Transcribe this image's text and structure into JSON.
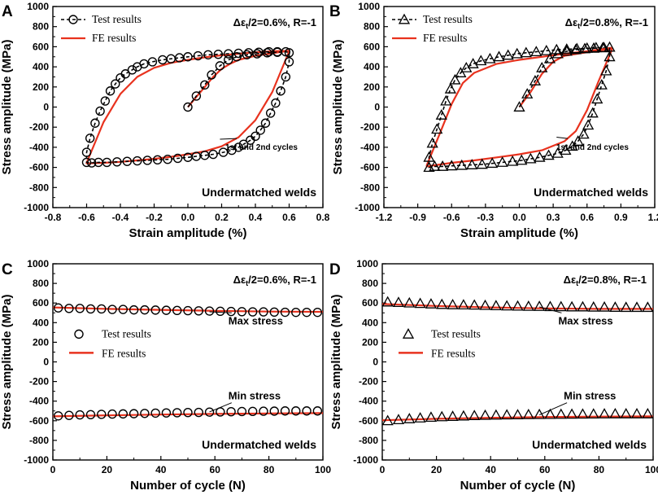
{
  "colors": {
    "fe_line": "#e8321e",
    "marker": "#000000",
    "frame": "#000000"
  },
  "chart_data": [
    {
      "panel": "A",
      "type": "scatter",
      "condition": {
        "prefix": "Δε",
        "sub": "t",
        "suffix": "/2=0.6%, R=-1"
      },
      "material": "Undermatched welds",
      "xlabel": "Strain amplitude (%)",
      "ylabel": "Stress amplitude (MPa)",
      "xlim": [
        -0.8,
        0.8
      ],
      "ylim": [
        -1000,
        1000
      ],
      "xticks": [
        -0.8,
        -0.6,
        -0.4,
        -0.2,
        0.0,
        0.2,
        0.4,
        0.6,
        0.8
      ],
      "xtick_labels": [
        "-0.8",
        "-0.6",
        "-0.4",
        "-0.2",
        "0.0",
        "0.2",
        "0.4",
        "0.6",
        "0.8"
      ],
      "yticks": [
        -1000,
        -800,
        -600,
        -400,
        -200,
        0,
        200,
        400,
        600,
        800,
        1000
      ],
      "ytick_labels": [
        "-1000",
        "-800",
        "-600",
        "-400",
        "-200",
        "0",
        "200",
        "400",
        "600",
        "800",
        "1000"
      ],
      "marker": "circle",
      "legend": {
        "test": "Test results",
        "fe": "FE results",
        "style": "inline-dash"
      },
      "annotation": {
        "text": "1st and 2nd cycles",
        "x": 0.27,
        "y": -410,
        "arrow_to": [
          0.19,
          -320
        ]
      },
      "series": [
        {
          "name": "Test results",
          "style": "markers",
          "x": [
            0.0,
            0.05,
            0.1,
            0.14,
            0.19,
            0.24,
            0.29,
            0.35,
            0.41,
            0.47,
            0.53,
            0.58,
            0.6,
            0.6,
            0.58,
            0.55,
            0.52,
            0.49,
            0.46,
            0.43,
            0.4,
            0.37,
            0.33,
            0.3,
            0.26,
            0.21,
            0.15,
            0.1,
            0.05,
            0.0,
            -0.06,
            -0.12,
            -0.18,
            -0.24,
            -0.3,
            -0.36,
            -0.42,
            -0.48,
            -0.53,
            -0.57,
            -0.6,
            -0.6,
            -0.58,
            -0.55,
            -0.52,
            -0.49,
            -0.46,
            -0.43,
            -0.4,
            -0.37,
            -0.33,
            -0.3,
            -0.26,
            -0.21,
            -0.15,
            -0.1,
            -0.05,
            0.0,
            0.06,
            0.12,
            0.18,
            0.24,
            0.3,
            0.36,
            0.42,
            0.48,
            0.53
          ],
          "y": [
            0,
            110,
            220,
            320,
            410,
            470,
            500,
            520,
            530,
            540,
            545,
            550,
            540,
            450,
            300,
            160,
            40,
            -60,
            -160,
            -230,
            -290,
            -330,
            -370,
            -400,
            -430,
            -450,
            -470,
            -480,
            -490,
            -500,
            -510,
            -520,
            -525,
            -530,
            -535,
            -540,
            -545,
            -550,
            -550,
            -555,
            -550,
            -450,
            -310,
            -160,
            -40,
            60,
            160,
            230,
            290,
            330,
            370,
            400,
            430,
            450,
            470,
            480,
            490,
            500,
            510,
            520,
            525,
            530,
            535,
            540,
            545,
            550,
            550
          ]
        },
        {
          "name": "FE results",
          "style": "line",
          "x": [
            0.0,
            0.05,
            0.1,
            0.15,
            0.2,
            0.25,
            0.3,
            0.4,
            0.5,
            0.6,
            0.6,
            0.5,
            0.4,
            0.3,
            0.2,
            0.1,
            0.0,
            -0.1,
            -0.2,
            -0.3,
            -0.4,
            -0.5,
            -0.6,
            -0.6,
            -0.5,
            -0.4,
            -0.3,
            -0.2,
            -0.1,
            0.0,
            0.1,
            0.2,
            0.3,
            0.4,
            0.5,
            0.6
          ],
          "y": [
            0,
            100,
            200,
            300,
            380,
            430,
            470,
            510,
            535,
            560,
            555,
            150,
            -130,
            -300,
            -390,
            -440,
            -470,
            -495,
            -515,
            -530,
            -545,
            -555,
            -560,
            -555,
            -150,
            130,
            300,
            390,
            440,
            470,
            495,
            515,
            530,
            545,
            555,
            560
          ]
        }
      ]
    },
    {
      "panel": "B",
      "type": "scatter",
      "condition": {
        "prefix": "Δε",
        "sub": "t",
        "suffix": "/2=0.8%, R=-1"
      },
      "material": "Undermatched welds",
      "xlabel": "Strain amplitude (%)",
      "ylabel": "Stress amplitude (MPa)",
      "xlim": [
        -1.2,
        1.2
      ],
      "ylim": [
        -1000,
        1000
      ],
      "xticks": [
        -1.2,
        -0.9,
        -0.6,
        -0.3,
        0.0,
        0.3,
        0.6,
        0.9,
        1.2
      ],
      "xtick_labels": [
        "-1.2",
        "-0.9",
        "-0.6",
        "-0.3",
        "0.0",
        "0.3",
        "0.6",
        "0.9",
        "1.2"
      ],
      "yticks": [
        -1000,
        -800,
        -600,
        -400,
        -200,
        0,
        200,
        400,
        600,
        800,
        1000
      ],
      "ytick_labels": [
        "-1000",
        "-800",
        "-600",
        "-400",
        "-200",
        "0",
        "200",
        "400",
        "600",
        "800",
        "1000"
      ],
      "marker": "triangle",
      "legend": {
        "test": "Test results",
        "fe": "FE results",
        "style": "inline-dash"
      },
      "annotation": {
        "text": "1st and 2nd cycles",
        "x": 0.4,
        "y": -410,
        "arrow_to": [
          0.33,
          -300
        ]
      },
      "series": [
        {
          "name": "Test results",
          "style": "markers",
          "x": [
            0.0,
            0.07,
            0.14,
            0.2,
            0.27,
            0.34,
            0.42,
            0.5,
            0.58,
            0.66,
            0.74,
            0.8,
            0.8,
            0.77,
            0.73,
            0.69,
            0.65,
            0.61,
            0.57,
            0.52,
            0.47,
            0.41,
            0.34,
            0.26,
            0.18,
            0.1,
            0.02,
            -0.06,
            -0.15,
            -0.24,
            -0.33,
            -0.42,
            -0.51,
            -0.6,
            -0.68,
            -0.75,
            -0.8,
            -0.8,
            -0.77,
            -0.73,
            -0.69,
            -0.65,
            -0.61,
            -0.57,
            -0.52,
            -0.47,
            -0.41,
            -0.34,
            -0.26,
            -0.18,
            -0.1,
            -0.02,
            0.06,
            0.15,
            0.24,
            0.33,
            0.42,
            0.51,
            0.6,
            0.68,
            0.75
          ],
          "y": [
            0,
            130,
            260,
            390,
            480,
            530,
            555,
            570,
            580,
            585,
            590,
            595,
            500,
            360,
            220,
            80,
            -60,
            -180,
            -270,
            -340,
            -390,
            -430,
            -460,
            -480,
            -500,
            -515,
            -530,
            -540,
            -550,
            -560,
            -570,
            -575,
            -580,
            -585,
            -590,
            -590,
            -600,
            -500,
            -360,
            -220,
            -80,
            60,
            180,
            270,
            340,
            390,
            430,
            460,
            480,
            500,
            515,
            530,
            540,
            550,
            560,
            570,
            575,
            580,
            585,
            590,
            590
          ]
        },
        {
          "name": "FE results",
          "style": "line",
          "x": [
            0.0,
            0.1,
            0.2,
            0.3,
            0.4,
            0.6,
            0.82,
            0.82,
            0.7,
            0.6,
            0.5,
            0.4,
            0.2,
            0.0,
            -0.2,
            -0.4,
            -0.6,
            -0.82,
            -0.82,
            -0.7,
            -0.6,
            -0.5,
            -0.4,
            -0.2,
            0.0,
            0.2,
            0.4,
            0.6,
            0.82
          ],
          "y": [
            0,
            150,
            330,
            450,
            510,
            545,
            580,
            570,
            250,
            -30,
            -240,
            -340,
            -430,
            -470,
            -500,
            -530,
            -555,
            -590,
            -580,
            -250,
            30,
            240,
            340,
            430,
            470,
            500,
            530,
            555,
            590
          ]
        }
      ]
    },
    {
      "panel": "C",
      "type": "line",
      "condition": {
        "prefix": "Δε",
        "sub": "t",
        "suffix": "/2=0.6%, R=-1"
      },
      "material": "Undermatched welds",
      "xlabel": "Number of cycle (N)",
      "ylabel": "Stress amplitude (MPa)",
      "xlim": [
        0,
        100
      ],
      "ylim": [
        -1000,
        1000
      ],
      "xticks": [
        0,
        20,
        40,
        60,
        80,
        100
      ],
      "xtick_labels": [
        "0",
        "20",
        "40",
        "60",
        "80",
        "100"
      ],
      "yticks": [
        -1000,
        -800,
        -600,
        -400,
        -200,
        0,
        200,
        400,
        600,
        800,
        1000
      ],
      "ytick_labels": [
        "-1000",
        "-800",
        "-600",
        "-400",
        "-200",
        "0",
        "200",
        "400",
        "600",
        "800",
        "1000"
      ],
      "marker": "circle",
      "legend": {
        "test": "Test results",
        "fe": "FE results",
        "style": "block"
      },
      "annotations": [
        {
          "text": "Max stress",
          "x": 65,
          "y": 400,
          "arrow_to": [
            58,
            510
          ]
        },
        {
          "text": "Min stress",
          "x": 65,
          "y": -400,
          "arrow_to": [
            58,
            -510
          ]
        }
      ],
      "series": [
        {
          "name": "Test results (max)",
          "style": "markers",
          "x": [
            2,
            6,
            10,
            14,
            18,
            22,
            26,
            30,
            34,
            38,
            42,
            46,
            50,
            54,
            58,
            62,
            66,
            70,
            74,
            78,
            82,
            86,
            90,
            94,
            98
          ],
          "y": [
            550,
            545,
            545,
            540,
            540,
            535,
            535,
            530,
            530,
            528,
            526,
            524,
            522,
            520,
            518,
            516,
            514,
            512,
            510,
            510,
            508,
            506,
            505,
            505,
            505
          ]
        },
        {
          "name": "Test results (min)",
          "style": "markers",
          "x": [
            2,
            6,
            10,
            14,
            18,
            22,
            26,
            30,
            34,
            38,
            42,
            46,
            50,
            54,
            58,
            62,
            66,
            70,
            74,
            78,
            82,
            86,
            90,
            94,
            98
          ],
          "y": [
            -550,
            -545,
            -540,
            -538,
            -535,
            -532,
            -530,
            -528,
            -525,
            -522,
            -520,
            -518,
            -516,
            -515,
            -512,
            -510,
            -508,
            -506,
            -505,
            -503,
            -502,
            -500,
            -500,
            -500,
            -500
          ]
        },
        {
          "name": "FE results (max)",
          "style": "line",
          "x": [
            0,
            20,
            40,
            60,
            80,
            100
          ],
          "y": [
            555,
            540,
            530,
            520,
            513,
            510
          ]
        },
        {
          "name": "FE results (min)",
          "style": "line",
          "x": [
            0,
            20,
            40,
            60,
            80,
            100
          ],
          "y": [
            -555,
            -545,
            -537,
            -530,
            -525,
            -522
          ]
        }
      ]
    },
    {
      "panel": "D",
      "type": "line",
      "condition": {
        "prefix": "Δε",
        "sub": "t",
        "suffix": "/2=0.8%, R=-1"
      },
      "material": "Undermatched welds",
      "xlabel": "Number of cycle (N)",
      "ylabel": "Stress amplitude (MPa)",
      "xlim": [
        0,
        100
      ],
      "ylim": [
        -1000,
        1000
      ],
      "xticks": [
        0,
        20,
        40,
        60,
        80,
        100
      ],
      "xtick_labels": [
        "0",
        "20",
        "40",
        "60",
        "80",
        "100"
      ],
      "yticks": [
        -1000,
        -800,
        -600,
        -400,
        -200,
        0,
        200,
        400,
        600,
        800,
        1000
      ],
      "ytick_labels": [
        "-1000",
        "-800",
        "-600",
        "-400",
        "-200",
        "0",
        "200",
        "400",
        "600",
        "800",
        "1000"
      ],
      "marker": "triangle",
      "legend": {
        "test": "Test results",
        "fe": "FE results",
        "style": "block"
      },
      "annotations": [
        {
          "text": "Max stress",
          "x": 65,
          "y": 400,
          "arrow_to": [
            58,
            560
          ]
        },
        {
          "text": "Min stress",
          "x": 67,
          "y": -400,
          "arrow_to": [
            58,
            -540
          ]
        }
      ],
      "series": [
        {
          "name": "Test results (max)",
          "style": "markers",
          "x": [
            2,
            6,
            10,
            14,
            18,
            22,
            26,
            30,
            34,
            38,
            42,
            46,
            50,
            54,
            58,
            62,
            66,
            70,
            74,
            78,
            82,
            86,
            90,
            94,
            98
          ],
          "y": [
            610,
            605,
            600,
            595,
            590,
            585,
            582,
            580,
            578,
            575,
            572,
            570,
            568,
            566,
            565,
            563,
            562,
            560,
            560,
            558,
            558,
            556,
            555,
            555,
            555
          ]
        },
        {
          "name": "Test results (min)",
          "style": "markers",
          "x": [
            2,
            6,
            10,
            14,
            18,
            22,
            26,
            30,
            34,
            38,
            42,
            46,
            50,
            54,
            58,
            62,
            66,
            70,
            74,
            78,
            82,
            86,
            90,
            94,
            98
          ],
          "y": [
            -600,
            -590,
            -580,
            -572,
            -565,
            -560,
            -556,
            -552,
            -548,
            -545,
            -543,
            -541,
            -540,
            -538,
            -537,
            -536,
            -535,
            -534,
            -533,
            -532,
            -531,
            -530,
            -530,
            -530,
            -530
          ]
        },
        {
          "name": "FE results (max)",
          "style": "line",
          "x": [
            0,
            20,
            40,
            60,
            80,
            100
          ],
          "y": [
            590,
            570,
            555,
            545,
            540,
            540
          ]
        },
        {
          "name": "FE results (min)",
          "style": "line",
          "x": [
            0,
            20,
            40,
            60,
            80,
            100
          ],
          "y": [
            -595,
            -580,
            -570,
            -562,
            -558,
            -555
          ]
        }
      ]
    }
  ]
}
